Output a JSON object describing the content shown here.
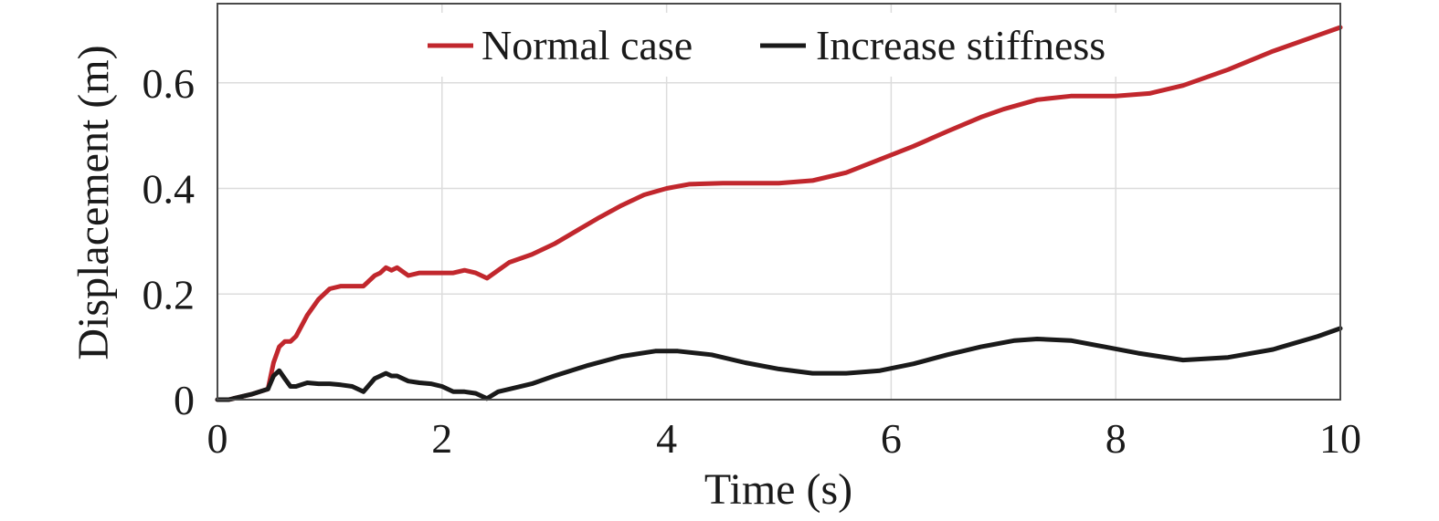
{
  "chart_data": {
    "type": "line",
    "title": "",
    "xlabel": "Time (s)",
    "ylabel": "Displacement (m)",
    "xlim": [
      0,
      10
    ],
    "ylim": [
      0,
      0.75
    ],
    "xticks": [
      0,
      2,
      4,
      6,
      8,
      10
    ],
    "yticks": [
      0,
      0.2,
      0.4,
      0.6
    ],
    "xtick_labels": [
      "0",
      "2",
      "4",
      "6",
      "8",
      "10"
    ],
    "ytick_labels": [
      "0",
      "0.2",
      "0.4",
      "0.6"
    ],
    "grid": true,
    "legend_position": "top",
    "series": [
      {
        "name": "Normal case",
        "color": "#c1272d",
        "x": [
          0,
          0.1,
          0.2,
          0.3,
          0.45,
          0.5,
          0.55,
          0.6,
          0.65,
          0.7,
          0.8,
          0.9,
          1.0,
          1.1,
          1.2,
          1.3,
          1.4,
          1.45,
          1.5,
          1.55,
          1.6,
          1.7,
          1.8,
          1.9,
          2.0,
          2.1,
          2.2,
          2.3,
          2.4,
          2.5,
          2.6,
          2.8,
          3.0,
          3.2,
          3.4,
          3.6,
          3.8,
          4.0,
          4.2,
          4.5,
          5.0,
          5.3,
          5.6,
          5.9,
          6.2,
          6.5,
          6.8,
          7.0,
          7.3,
          7.6,
          8.0,
          8.3,
          8.6,
          9.0,
          9.4,
          9.8,
          10.0
        ],
        "y": [
          0.0,
          0.0,
          0.005,
          0.01,
          0.02,
          0.07,
          0.1,
          0.11,
          0.11,
          0.12,
          0.16,
          0.19,
          0.21,
          0.215,
          0.215,
          0.215,
          0.235,
          0.24,
          0.25,
          0.245,
          0.25,
          0.235,
          0.24,
          0.24,
          0.24,
          0.24,
          0.245,
          0.24,
          0.23,
          0.245,
          0.26,
          0.275,
          0.295,
          0.32,
          0.345,
          0.368,
          0.388,
          0.4,
          0.408,
          0.41,
          0.41,
          0.415,
          0.43,
          0.455,
          0.48,
          0.508,
          0.535,
          0.55,
          0.568,
          0.575,
          0.575,
          0.58,
          0.595,
          0.625,
          0.66,
          0.69,
          0.705
        ]
      },
      {
        "name": "Increase stiffness",
        "color": "#1a1a1a",
        "x": [
          0,
          0.1,
          0.2,
          0.3,
          0.45,
          0.5,
          0.55,
          0.6,
          0.65,
          0.7,
          0.8,
          0.9,
          1.0,
          1.1,
          1.2,
          1.3,
          1.4,
          1.5,
          1.55,
          1.6,
          1.7,
          1.8,
          1.9,
          2.0,
          2.1,
          2.2,
          2.3,
          2.4,
          2.5,
          2.6,
          2.8,
          3.0,
          3.3,
          3.6,
          3.9,
          4.1,
          4.4,
          4.7,
          5.0,
          5.3,
          5.6,
          5.9,
          6.2,
          6.5,
          6.8,
          7.1,
          7.3,
          7.6,
          7.9,
          8.2,
          8.6,
          9.0,
          9.4,
          9.8,
          10.0
        ],
        "y": [
          0.0,
          0.0,
          0.005,
          0.01,
          0.02,
          0.045,
          0.055,
          0.04,
          0.025,
          0.025,
          0.032,
          0.03,
          0.03,
          0.028,
          0.025,
          0.015,
          0.04,
          0.05,
          0.045,
          0.045,
          0.035,
          0.032,
          0.03,
          0.025,
          0.015,
          0.015,
          0.012,
          0.002,
          0.015,
          0.02,
          0.03,
          0.045,
          0.065,
          0.082,
          0.092,
          0.092,
          0.085,
          0.07,
          0.058,
          0.05,
          0.05,
          0.055,
          0.068,
          0.085,
          0.1,
          0.112,
          0.115,
          0.112,
          0.1,
          0.088,
          0.075,
          0.08,
          0.095,
          0.12,
          0.135
        ]
      }
    ]
  }
}
